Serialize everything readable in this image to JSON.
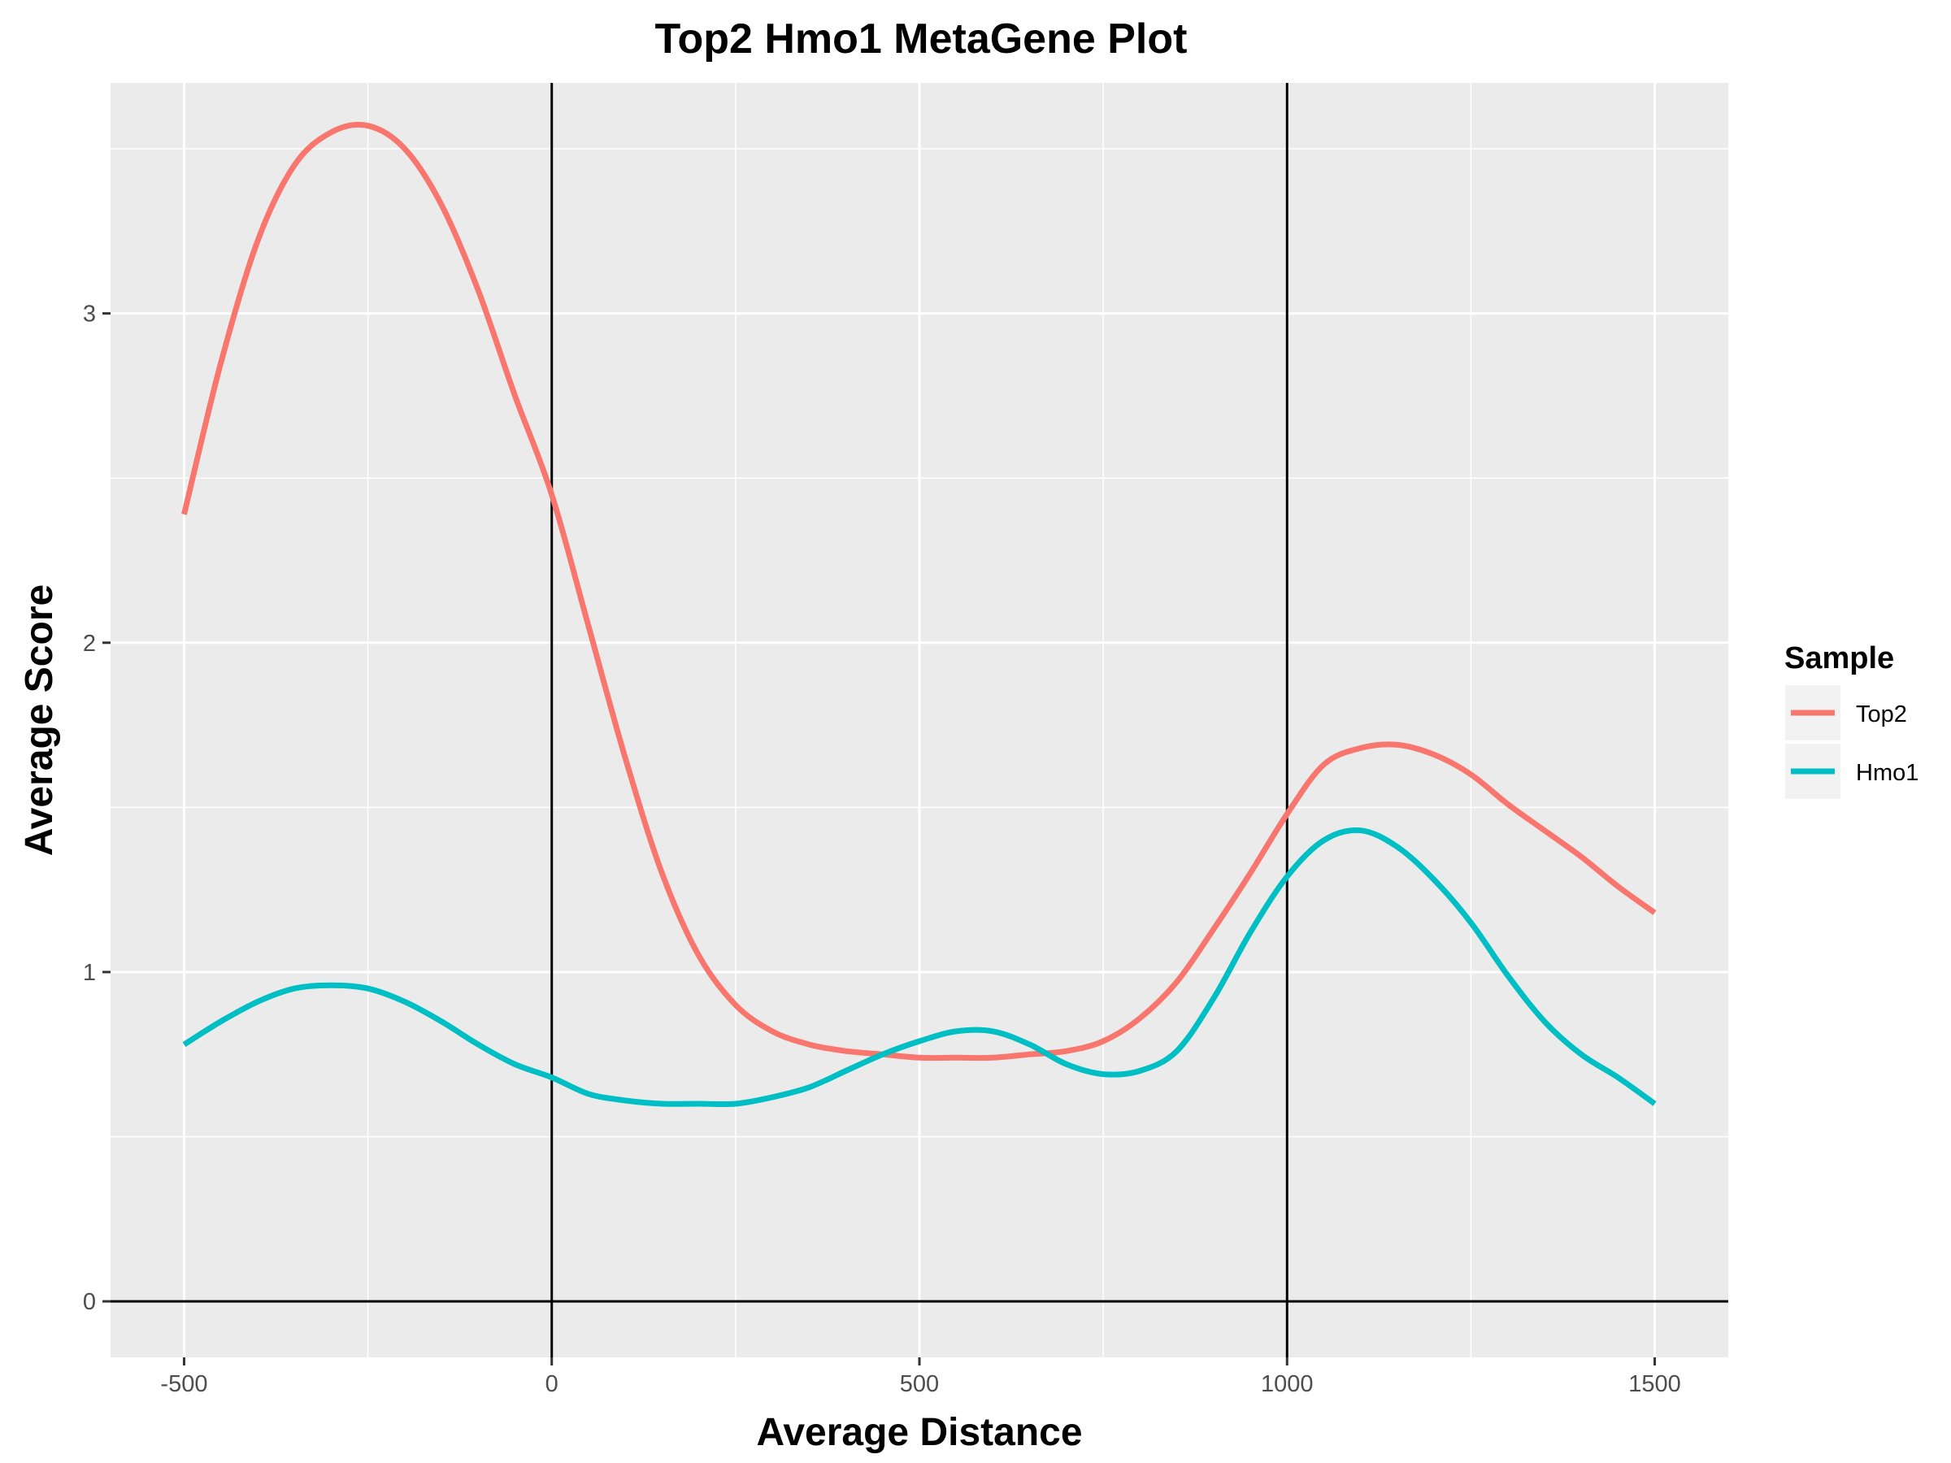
{
  "chart_data": {
    "type": "line",
    "title": "Top2 Hmo1 MetaGene Plot",
    "xlabel": "Average Distance",
    "ylabel": "Average Score",
    "xlim": [
      -600,
      1600
    ],
    "ylim": [
      -0.17,
      3.7
    ],
    "x_ticks": [
      -500,
      0,
      500,
      1000,
      1500
    ],
    "x_tick_labels": [
      "-500",
      "0",
      "500",
      "1000",
      "1500"
    ],
    "x_minor_ticks": [
      -250,
      250,
      750,
      1250
    ],
    "y_ticks": [
      0,
      1,
      2,
      3
    ],
    "y_tick_labels": [
      "0",
      "1",
      "2",
      "3"
    ],
    "y_minor_ticks": [
      0.5,
      1.5,
      2.5,
      3.5
    ],
    "reference_lines": {
      "vertical": [
        0,
        1000
      ],
      "horizontal": [
        0
      ]
    },
    "grid": true,
    "background": "#ebebeb",
    "legend": {
      "title": "Sample",
      "position": "right",
      "entries": [
        "Top2",
        "Hmo1"
      ]
    },
    "series": [
      {
        "name": "Top2",
        "color": "#f8766d",
        "x": [
          -500,
          -450,
          -400,
          -350,
          -300,
          -250,
          -200,
          -150,
          -100,
          -50,
          0,
          50,
          100,
          150,
          200,
          250,
          300,
          350,
          400,
          450,
          500,
          550,
          600,
          650,
          700,
          750,
          800,
          850,
          900,
          950,
          1000,
          1050,
          1100,
          1150,
          1200,
          1250,
          1300,
          1350,
          1400,
          1450,
          1500
        ],
        "values": [
          2.39,
          2.85,
          3.22,
          3.45,
          3.55,
          3.57,
          3.5,
          3.33,
          3.07,
          2.75,
          2.45,
          2.05,
          1.65,
          1.3,
          1.05,
          0.9,
          0.82,
          0.78,
          0.76,
          0.75,
          0.74,
          0.74,
          0.74,
          0.75,
          0.76,
          0.79,
          0.86,
          0.97,
          1.13,
          1.3,
          1.48,
          1.63,
          1.68,
          1.69,
          1.66,
          1.6,
          1.51,
          1.43,
          1.35,
          1.26,
          1.18
        ]
      },
      {
        "name": "Hmo1",
        "color": "#00bfc4",
        "x": [
          -500,
          -450,
          -400,
          -350,
          -300,
          -250,
          -200,
          -150,
          -100,
          -50,
          0,
          50,
          100,
          150,
          200,
          250,
          300,
          350,
          400,
          450,
          500,
          550,
          600,
          650,
          700,
          750,
          800,
          850,
          900,
          950,
          1000,
          1050,
          1100,
          1150,
          1200,
          1250,
          1300,
          1350,
          1400,
          1450,
          1500
        ],
        "values": [
          0.78,
          0.85,
          0.91,
          0.95,
          0.96,
          0.95,
          0.91,
          0.85,
          0.78,
          0.72,
          0.68,
          0.63,
          0.61,
          0.6,
          0.6,
          0.6,
          0.62,
          0.65,
          0.7,
          0.75,
          0.79,
          0.82,
          0.82,
          0.78,
          0.72,
          0.69,
          0.7,
          0.76,
          0.92,
          1.12,
          1.29,
          1.4,
          1.43,
          1.38,
          1.28,
          1.15,
          0.99,
          0.85,
          0.75,
          0.68,
          0.6
        ]
      }
    ]
  }
}
